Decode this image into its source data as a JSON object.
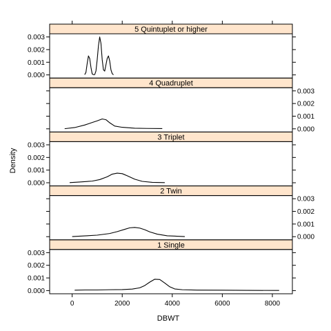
{
  "chart_data": {
    "type": "line",
    "title": "",
    "xlabel": "DBWT",
    "ylabel": "Density",
    "xlim": [
      -900,
      8800
    ],
    "ylim": [
      -0.00025,
      0.00325
    ],
    "x_ticks": [
      0,
      2000,
      4000,
      6000,
      8000
    ],
    "x_tick_labels": [
      "0",
      "2000",
      "4000",
      "6000",
      "8000"
    ],
    "y_ticks": [
      0,
      0.001,
      0.002,
      0.003
    ],
    "y_tick_labels": [
      "0.000",
      "0.001",
      "0.002",
      "0.003"
    ],
    "strip_fill": "#ffe5cc",
    "line_color": "#000000",
    "panels": [
      {
        "label": "1 Single",
        "x": [
          100,
          500,
          1000,
          1500,
          2000,
          2400,
          2700,
          2900,
          3100,
          3300,
          3500,
          3700,
          3900,
          4100,
          4400,
          5000,
          6000,
          7000,
          8270
        ],
        "y": [
          3e-05,
          5e-05,
          5e-05,
          7e-05,
          8e-05,
          0.00012,
          0.00022,
          0.0004,
          0.00067,
          0.0009,
          0.00088,
          0.0006,
          0.0003,
          0.00013,
          7e-05,
          4e-05,
          3e-05,
          2e-05,
          1e-05
        ]
      },
      {
        "label": "2 Twin",
        "x": [
          0,
          500,
          1000,
          1500,
          1800,
          2100,
          2300,
          2500,
          2700,
          2900,
          3100,
          3400,
          3800,
          4500
        ],
        "y": [
          1e-05,
          6e-05,
          0.00012,
          0.00025,
          0.0004,
          0.00058,
          0.0007,
          0.00073,
          0.00068,
          0.00055,
          0.00038,
          0.0002,
          7e-05,
          1e-05
        ]
      },
      {
        "label": "3 Triplet",
        "x": [
          -100,
          300,
          800,
          1100,
          1400,
          1600,
          1800,
          2000,
          2200,
          2500,
          2800,
          3200,
          3700
        ],
        "y": [
          1e-05,
          6e-05,
          0.00013,
          0.00025,
          0.00047,
          0.00068,
          0.00076,
          0.00072,
          0.00055,
          0.00028,
          0.00011,
          3e-05,
          1e-05
        ]
      },
      {
        "label": "4 Quadruplet",
        "x": [
          -300,
          100,
          500,
          800,
          1000,
          1200,
          1350,
          1500,
          1700,
          2000,
          2500,
          3000,
          3600
        ],
        "y": [
          1e-05,
          0.0001,
          0.0003,
          0.0005,
          0.00063,
          0.00078,
          0.00072,
          0.00048,
          0.00022,
          0.00012,
          5e-05,
          3e-05,
          2e-05
        ]
      },
      {
        "label": "5 Quintuplet or higher",
        "x": [
          500,
          550,
          600,
          650,
          700,
          750,
          800,
          850,
          900,
          950,
          1000,
          1050,
          1100,
          1150,
          1200,
          1250,
          1300,
          1350,
          1400,
          1450,
          1500,
          1550,
          1600,
          1650
        ],
        "y": [
          2e-05,
          0.0002,
          0.0009,
          0.0015,
          0.0013,
          0.0006,
          8e-05,
          2e-05,
          2e-05,
          0.0003,
          0.0012,
          0.0023,
          0.003,
          0.0025,
          0.0012,
          0.0004,
          0.0003,
          0.0008,
          0.0013,
          0.0015,
          0.0011,
          0.0004,
          0.0001,
          1e-05
        ]
      }
    ]
  }
}
